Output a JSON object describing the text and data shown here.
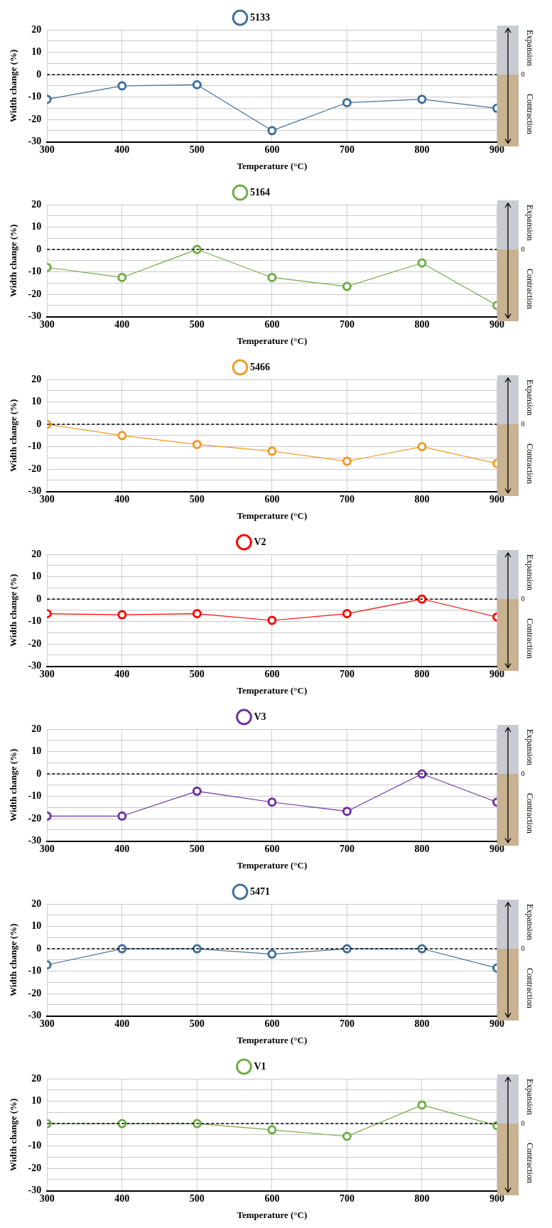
{
  "chart_data": [
    {
      "type": "line",
      "x": [
        300,
        400,
        500,
        600,
        700,
        800,
        900
      ],
      "series": [
        {
          "name": "5133",
          "color": "#41719c",
          "values": [
            -11,
            -5,
            -4.5,
            -25,
            -12.5,
            -11,
            -15
          ]
        }
      ],
      "xlim": [
        300,
        900
      ],
      "xticks": [
        300,
        400,
        500,
        600,
        700,
        800,
        900
      ],
      "ylim": [
        -30,
        20
      ],
      "yticks": [
        -30,
        {
          "value": -25,
          "label": null
        },
        -20,
        {
          "value": -15,
          "label": null
        },
        -10,
        {
          "value": -5,
          "label": null
        },
        0,
        {
          "value": 5,
          "label": null
        },
        10,
        {
          "value": 15,
          "label": null
        },
        20
      ],
      "xlabel": "Temperature (°C)",
      "ylabel": "Width change (%)",
      "grid": true,
      "legend": "top",
      "marker": "circle",
      "ref_lines": [
        {
          "axis": "y",
          "value": 0,
          "label": "0",
          "line_style": "dashed",
          "color": "#000000"
        }
      ],
      "annotations": [
        "Expansion",
        "Contraction"
      ]
    },
    {
      "type": "line",
      "x": [
        300,
        400,
        500,
        600,
        700,
        800,
        900
      ],
      "series": [
        {
          "name": "5164",
          "color": "#70ad47",
          "values": [
            -8,
            -12.5,
            0,
            -12.5,
            -16.5,
            -6,
            -25
          ]
        }
      ],
      "xlim": [
        300,
        900
      ],
      "xticks": [
        300,
        400,
        500,
        600,
        700,
        800,
        900
      ],
      "ylim": [
        -30,
        20
      ],
      "yticks": [
        -30,
        {
          "value": -25,
          "label": null
        },
        -20,
        {
          "value": -15,
          "label": null
        },
        -10,
        {
          "value": -5,
          "label": null
        },
        0,
        {
          "value": 5,
          "label": null
        },
        10,
        {
          "value": 15,
          "label": null
        },
        20
      ],
      "xlabel": "Temperature (°C)",
      "ylabel": "Width change (%)",
      "grid": true,
      "legend": "top",
      "marker": "circle",
      "ref_lines": [
        {
          "axis": "y",
          "value": 0,
          "label": "0",
          "line_style": "dashed",
          "color": "#000000"
        }
      ],
      "annotations": [
        "Expansion",
        "Contraction"
      ]
    },
    {
      "type": "line",
      "x": [
        300,
        400,
        500,
        600,
        700,
        800,
        900
      ],
      "series": [
        {
          "name": "5466",
          "color": "#ed9c28",
          "values": [
            0,
            -5,
            -9,
            -12,
            -16.5,
            -10,
            -17.5
          ]
        }
      ],
      "xlim": [
        300,
        900
      ],
      "xticks": [
        300,
        400,
        500,
        600,
        700,
        800,
        900
      ],
      "ylim": [
        -30,
        20
      ],
      "yticks": [
        -30,
        {
          "value": -25,
          "label": null
        },
        -20,
        {
          "value": -15,
          "label": null
        },
        -10,
        {
          "value": -5,
          "label": null
        },
        0,
        {
          "value": 5,
          "label": null
        },
        10,
        {
          "value": 15,
          "label": null
        },
        20
      ],
      "xlabel": "Temperature (°C)",
      "ylabel": "Width change (%)",
      "grid": true,
      "legend": "top",
      "marker": "circle",
      "ref_lines": [
        {
          "axis": "y",
          "value": 0,
          "label": "0",
          "line_style": "dashed",
          "color": "#000000"
        }
      ],
      "annotations": [
        "Expansion",
        "Contraction"
      ]
    },
    {
      "type": "line",
      "x": [
        300,
        400,
        500,
        600,
        700,
        800,
        900
      ],
      "series": [
        {
          "name": "V2",
          "color": "#ff0000",
          "values": [
            -6.5,
            -7,
            -6.5,
            -9.5,
            -6.5,
            0,
            -8
          ]
        }
      ],
      "xlim": [
        300,
        900
      ],
      "xticks": [
        300,
        400,
        500,
        600,
        700,
        800,
        900
      ],
      "ylim": [
        -30,
        20
      ],
      "yticks": [
        -30,
        {
          "value": -25,
          "label": null
        },
        -20,
        {
          "value": -15,
          "label": null
        },
        -10,
        {
          "value": -5,
          "label": null
        },
        0,
        {
          "value": 5,
          "label": null
        },
        10,
        {
          "value": 15,
          "label": null
        },
        20
      ],
      "xlabel": "Temperature (°C)",
      "ylabel": "Width change (%)",
      "grid": true,
      "legend": "top",
      "marker": "circle",
      "ref_lines": [
        {
          "axis": "y",
          "value": 0,
          "label": "0",
          "line_style": "dashed",
          "color": "#000000"
        }
      ],
      "annotations": [
        "Expansion",
        "Contraction"
      ]
    },
    {
      "type": "line",
      "x": [
        300,
        400,
        500,
        600,
        700,
        800,
        900
      ],
      "series": [
        {
          "name": "V3",
          "color": "#7030a0",
          "values": [
            -18.8,
            -18.8,
            -7.7,
            -12.6,
            -16.7,
            0,
            -12.6
          ]
        }
      ],
      "xlim": [
        300,
        900
      ],
      "xticks": [
        300,
        400,
        500,
        600,
        700,
        800,
        900
      ],
      "ylim": [
        -30,
        20
      ],
      "yticks": [
        -30,
        {
          "value": -25,
          "label": null
        },
        -20,
        {
          "value": -15,
          "label": null
        },
        -10,
        {
          "value": -5,
          "label": null
        },
        0,
        {
          "value": 5,
          "label": null
        },
        10,
        {
          "value": 15,
          "label": null
        },
        20
      ],
      "xlabel": "Temperature (°C)",
      "ylabel": "Width change (%)",
      "grid": true,
      "legend": "top",
      "marker": "circle",
      "ref_lines": [
        {
          "axis": "y",
          "value": 0,
          "label": "0",
          "line_style": "dashed",
          "color": "#000000"
        }
      ],
      "annotations": [
        "Expansion",
        "Contraction"
      ]
    },
    {
      "type": "line",
      "x": [
        300,
        400,
        500,
        600,
        700,
        800,
        900
      ],
      "series": [
        {
          "name": "5471",
          "color": "#41719c",
          "values": [
            -7.2,
            0,
            0,
            -2.4,
            0,
            0,
            -8.6
          ]
        }
      ],
      "xlim": [
        300,
        900
      ],
      "xticks": [
        300,
        400,
        500,
        600,
        700,
        800,
        900
      ],
      "ylim": [
        -30,
        20
      ],
      "yticks": [
        -30,
        {
          "value": -25,
          "label": null
        },
        -20,
        {
          "value": -15,
          "label": null
        },
        -10,
        {
          "value": -5,
          "label": null
        },
        0,
        {
          "value": 5,
          "label": null
        },
        10,
        {
          "value": 15,
          "label": null
        },
        20
      ],
      "xlabel": "Temperature (°C)",
      "ylabel": "Width change (%)",
      "grid": true,
      "legend": "top",
      "marker": "circle",
      "ref_lines": [
        {
          "axis": "y",
          "value": 0,
          "label": "0",
          "line_style": "dashed",
          "color": "#000000"
        }
      ],
      "annotations": [
        "Expansion",
        "Contraction"
      ]
    },
    {
      "type": "line",
      "x": [
        300,
        400,
        500,
        600,
        700,
        800,
        900
      ],
      "series": [
        {
          "name": "V1",
          "color": "#70ad47",
          "values": [
            0,
            0,
            0,
            -2.8,
            -5.7,
            8.3,
            -0.9
          ]
        }
      ],
      "xlim": [
        300,
        900
      ],
      "xticks": [
        300,
        400,
        500,
        600,
        700,
        800,
        900
      ],
      "ylim": [
        -30,
        20
      ],
      "yticks": [
        -30,
        {
          "value": -25,
          "label": null
        },
        -20,
        {
          "value": -15,
          "label": null
        },
        -10,
        {
          "value": -5,
          "label": null
        },
        0,
        {
          "value": 5,
          "label": null
        },
        10,
        {
          "value": 15,
          "label": null
        },
        20
      ],
      "xlabel": "Temperature (°C)",
      "ylabel": "Width change (%)",
      "grid": true,
      "legend": "top",
      "marker": "circle",
      "ref_lines": [
        {
          "axis": "y",
          "value": 0,
          "label": "0",
          "line_style": "dashed",
          "color": "#000000"
        }
      ],
      "annotations": [
        "Expansion",
        "Contraction"
      ]
    }
  ]
}
